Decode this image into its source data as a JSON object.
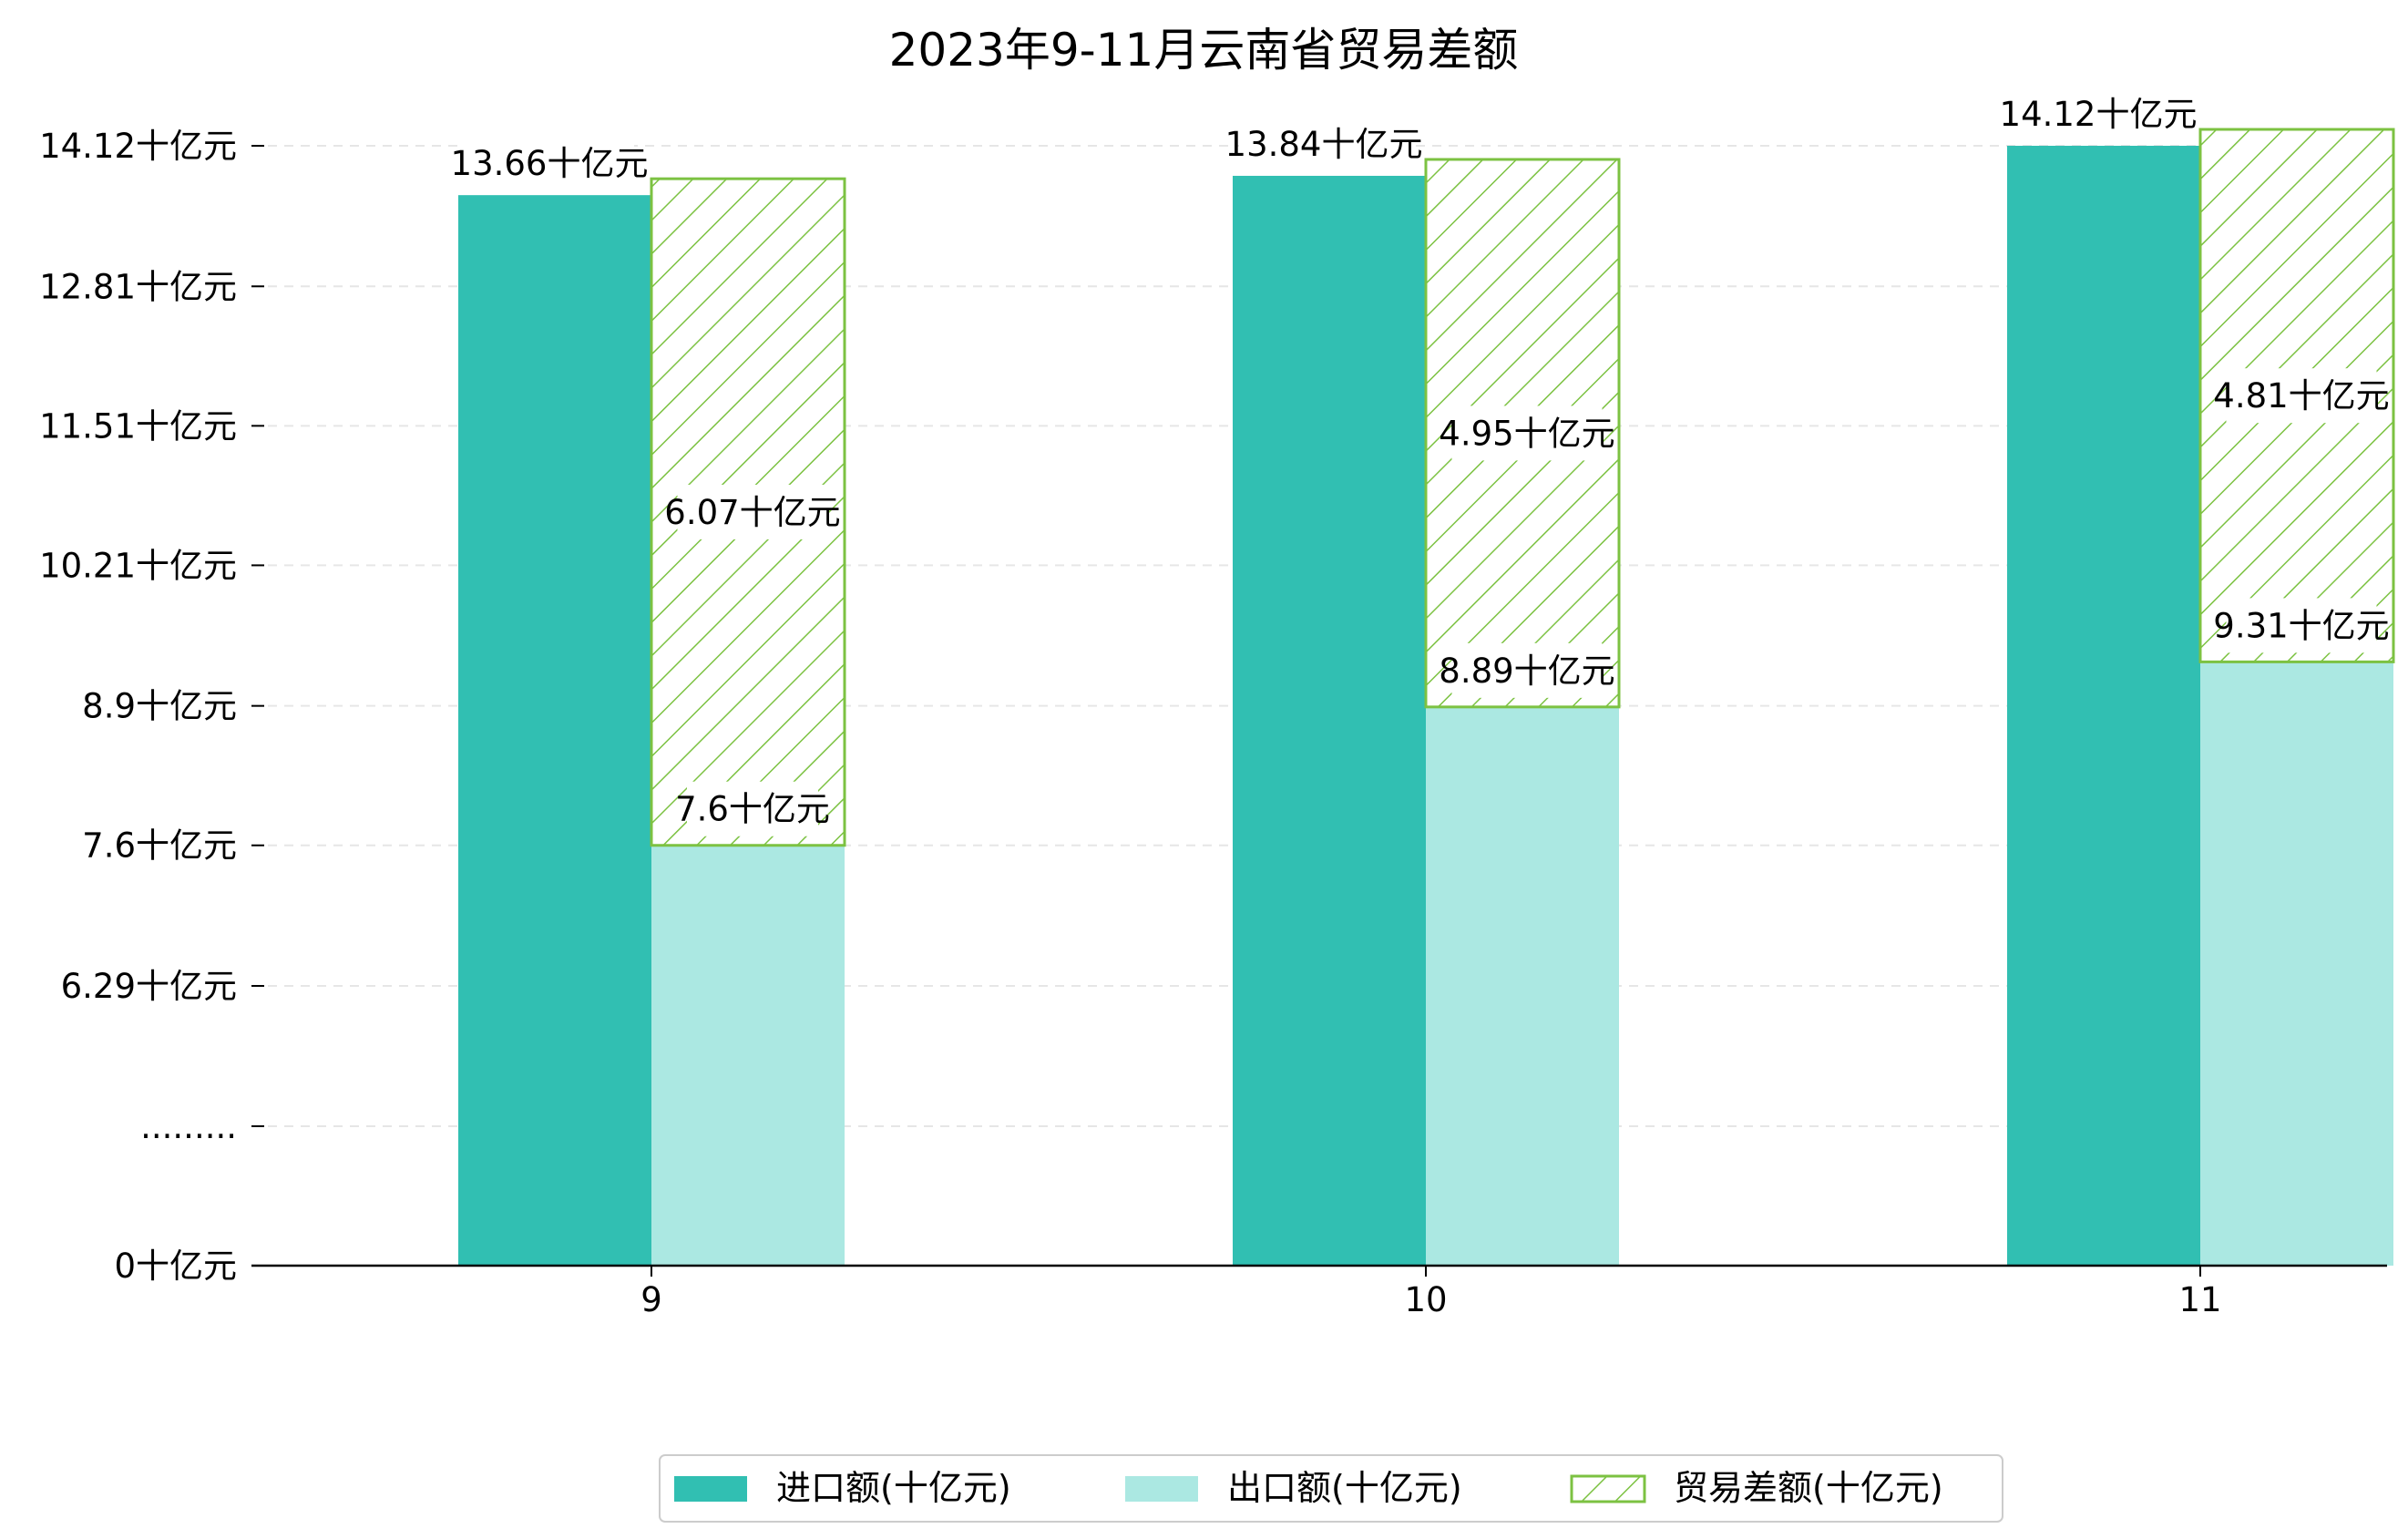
{
  "chart_data": {
    "type": "bar",
    "title": "2023年9-11月云南省贸易差额",
    "categories": [
      "9",
      "10",
      "11"
    ],
    "series": [
      {
        "name": "进口额(十亿元)",
        "values": [
          13.66,
          13.84,
          14.12
        ],
        "labels": [
          "13.66十亿元",
          "13.84十亿元",
          "14.12十亿元"
        ],
        "color": "#31bfb2"
      },
      {
        "name": "出口额(十亿元)",
        "values": [
          7.6,
          8.89,
          9.31
        ],
        "labels": [
          "7.6十亿元",
          "8.89十亿元",
          "9.31十亿元"
        ],
        "color": "#abe8e2"
      },
      {
        "name": "贸易差额(十亿元)",
        "values": [
          6.07,
          4.95,
          4.81
        ],
        "labels": [
          "6.07十亿元",
          "4.95十亿元",
          "4.81十亿元"
        ],
        "color": "#7cc242",
        "pattern": "hatch"
      }
    ],
    "yticks": [
      {
        "value": 0,
        "label": "0十亿元"
      },
      {
        "value": 5,
        "label": "........."
      },
      {
        "value": 6.29,
        "label": "6.29十亿元"
      },
      {
        "value": 7.6,
        "label": "7.6十亿元"
      },
      {
        "value": 8.9,
        "label": "8.9十亿元"
      },
      {
        "value": 10.21,
        "label": "10.21十亿元"
      },
      {
        "value": 11.51,
        "label": "11.51十亿元"
      },
      {
        "value": 12.81,
        "label": "12.81十亿元"
      },
      {
        "value": 14.12,
        "label": "14.12十亿元"
      }
    ],
    "axis_break": true,
    "grid": true,
    "legend_position": "bottom-center"
  }
}
